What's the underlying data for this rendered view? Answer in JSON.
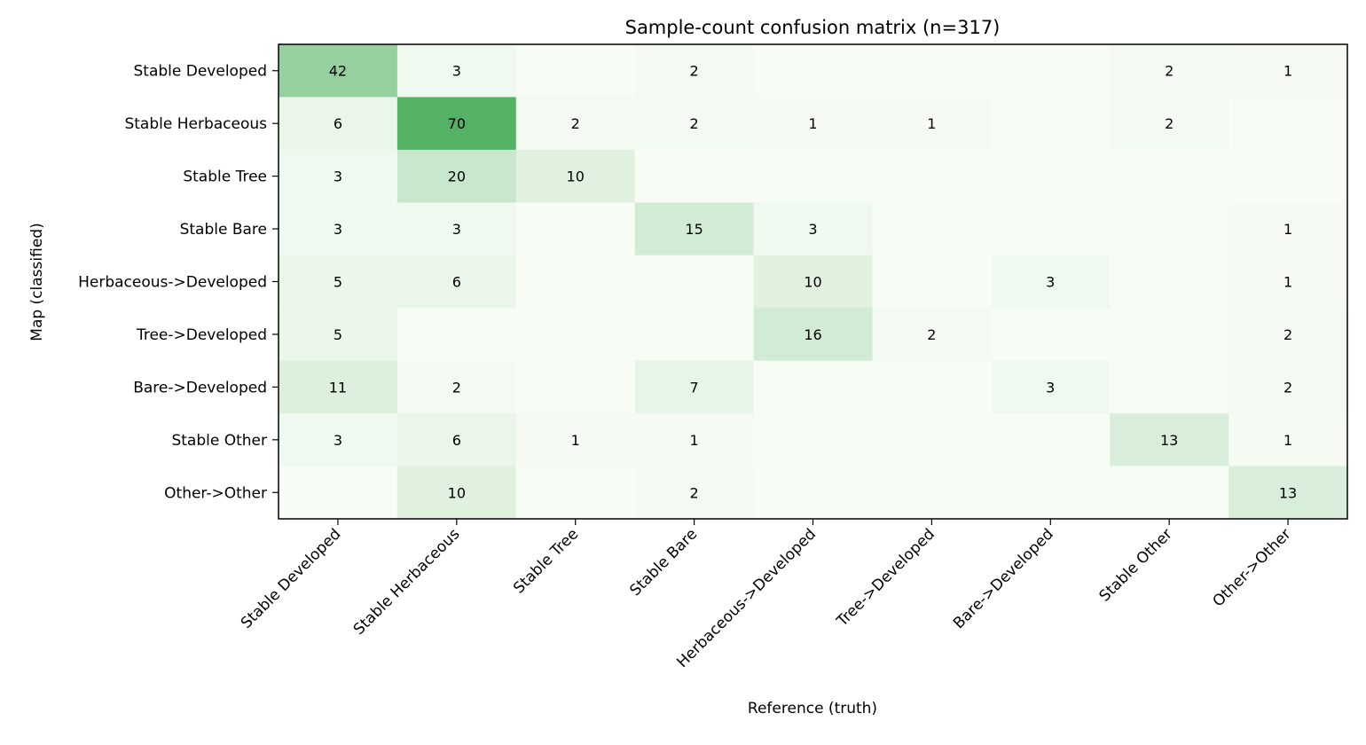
{
  "chart_data": {
    "type": "heatmap",
    "title": "Sample-count confusion matrix (n=317)",
    "xlabel": "Reference (truth)",
    "ylabel": "Map (classified)",
    "x_categories": [
      "Stable Developed",
      "Stable Herbaceous",
      "Stable Tree",
      "Stable Bare",
      "Herbaceous->Developed",
      "Tree->Developed",
      "Bare->Developed",
      "Stable Other",
      "Other->Other"
    ],
    "y_categories": [
      "Stable Developed",
      "Stable Herbaceous",
      "Stable Tree",
      "Stable Bare",
      "Herbaceous->Developed",
      "Tree->Developed",
      "Bare->Developed",
      "Stable Other",
      "Other->Other"
    ],
    "values": [
      [
        42,
        3,
        0,
        2,
        0,
        0,
        0,
        2,
        1
      ],
      [
        6,
        70,
        2,
        2,
        1,
        1,
        0,
        2,
        0
      ],
      [
        3,
        20,
        10,
        0,
        0,
        0,
        0,
        0,
        0
      ],
      [
        3,
        3,
        0,
        15,
        3,
        0,
        0,
        0,
        1
      ],
      [
        5,
        6,
        0,
        0,
        10,
        0,
        3,
        0,
        1
      ],
      [
        5,
        0,
        0,
        0,
        16,
        2,
        0,
        0,
        2
      ],
      [
        11,
        2,
        0,
        7,
        0,
        0,
        3,
        0,
        2
      ],
      [
        3,
        6,
        1,
        1,
        0,
        0,
        0,
        13,
        1
      ],
      [
        0,
        10,
        0,
        2,
        0,
        0,
        0,
        0,
        13
      ]
    ],
    "hide_zero_labels": true,
    "colormap": "Greens",
    "value_range": [
      0,
      70
    ],
    "grid": false,
    "colors": {
      "low": "#f7fcf5",
      "high": "#53b264",
      "frame": "#000000"
    }
  }
}
